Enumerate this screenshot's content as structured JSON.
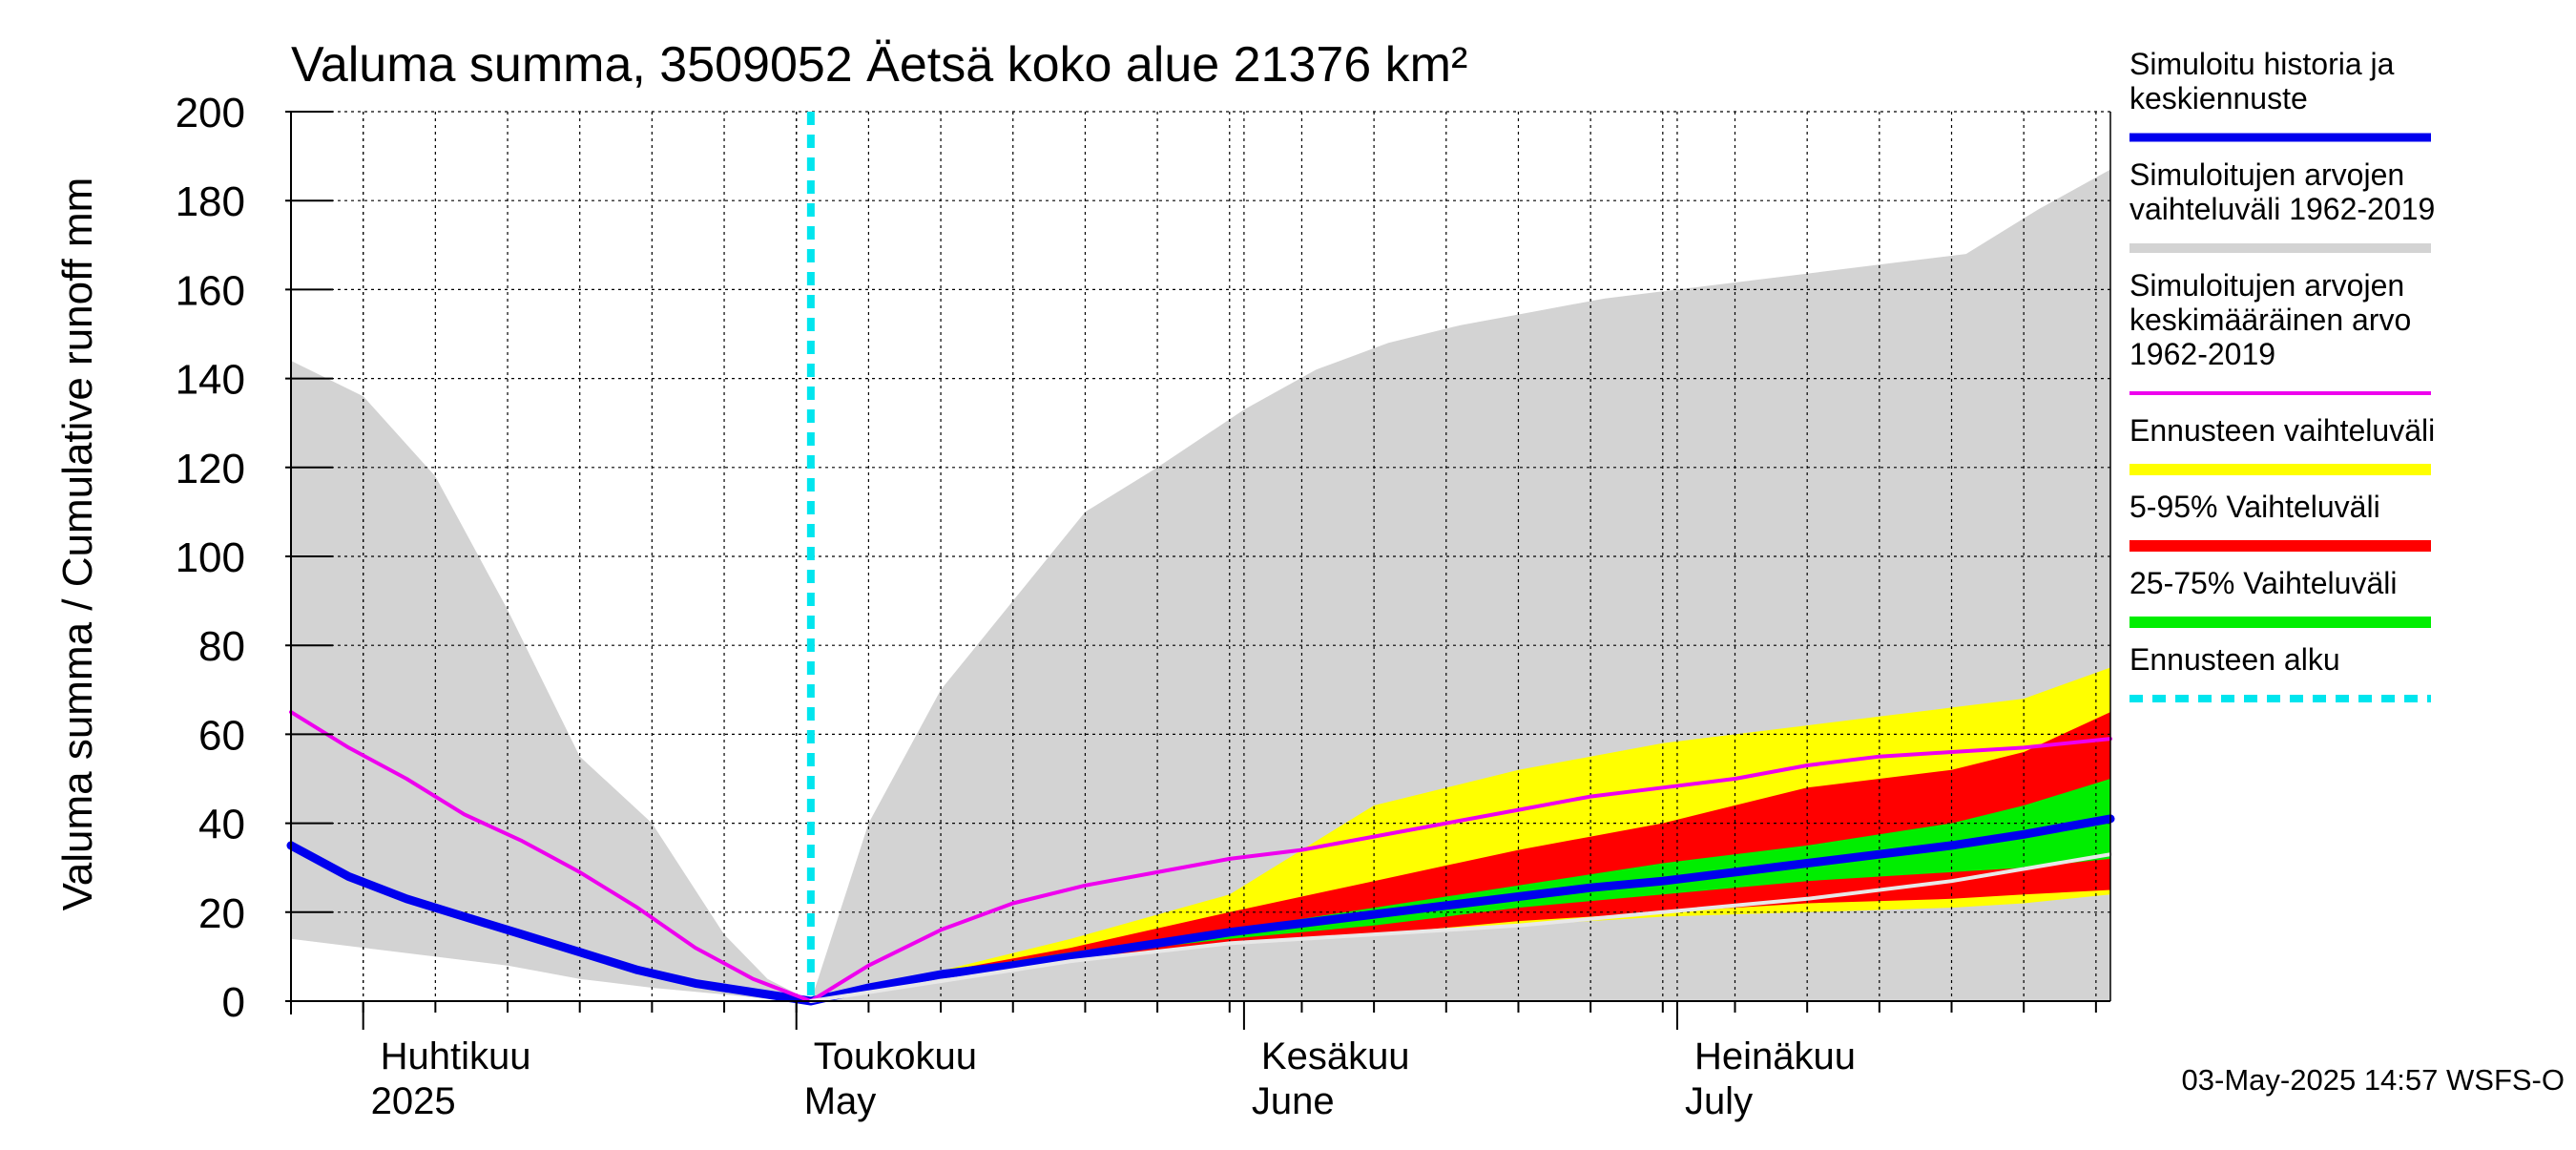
{
  "chart_data": {
    "type": "area",
    "title": "Valuma summa, 3509052 Äetsä koko alue 21376 km²",
    "ylabel": "Valuma summa / Cumulative runoff     mm",
    "ylim": [
      0,
      200
    ],
    "yticks": [
      0,
      20,
      40,
      60,
      80,
      100,
      120,
      140,
      160,
      180,
      200
    ],
    "xlim": [
      "2025-03-27",
      "2025-07-31"
    ],
    "month_labels": [
      {
        "fi": "Huhtikuu",
        "en": "2025",
        "date": "2025-04-01"
      },
      {
        "fi": "Toukokuu",
        "en": "May",
        "date": "2025-05-01"
      },
      {
        "fi": "Kesäkuu",
        "en": "June",
        "date": "2025-06-01"
      },
      {
        "fi": "Heinäkuu",
        "en": "July",
        "date": "2025-07-01"
      }
    ],
    "forecast_start": "2025-05-02",
    "grid": true,
    "legend_position": "right",
    "footer": "03-May-2025 14:57 WSFS-O",
    "colors": {
      "history_range": "#d3d3d3",
      "forecast_range": "#ffff00",
      "p5_95": "#ff0000",
      "p25_75": "#00ee00",
      "simulated": "#0000ee",
      "mean": "#ee00ee",
      "forecast_start": "#00e5ee",
      "grid": "#000000"
    },
    "series": [
      {
        "name": "Simuloitujen arvojen vaihteluväli 1962-2019",
        "type": "band",
        "color": "#d3d3d3",
        "x": [
          "2025-03-27",
          "2025-04-01",
          "2025-04-06",
          "2025-04-11",
          "2025-04-16",
          "2025-04-21",
          "2025-04-26",
          "2025-04-29",
          "2025-05-02",
          "2025-05-06",
          "2025-05-11",
          "2025-05-16",
          "2025-05-21",
          "2025-05-26",
          "2025-06-01",
          "2025-06-06",
          "2025-06-11",
          "2025-06-16",
          "2025-06-21",
          "2025-06-26",
          "2025-07-01",
          "2025-07-06",
          "2025-07-11",
          "2025-07-16",
          "2025-07-21",
          "2025-07-26",
          "2025-07-31"
        ],
        "lower": [
          14,
          12,
          10,
          8,
          5,
          3,
          1.5,
          0.5,
          0,
          0,
          0,
          0,
          0,
          0,
          0,
          0,
          0,
          0,
          0,
          0,
          0,
          0,
          0,
          0,
          0,
          0,
          0
        ],
        "upper": [
          144,
          136,
          118,
          88,
          55,
          40,
          15,
          5,
          0,
          40,
          70,
          90,
          110,
          120,
          133,
          142,
          148,
          152,
          155,
          158,
          160,
          162,
          164,
          166,
          168,
          178,
          187
        ]
      },
      {
        "name": "Ennusteen vaihteluväli",
        "type": "band",
        "color": "#ffff00",
        "x": [
          "2025-05-02",
          "2025-05-10",
          "2025-05-20",
          "2025-05-31",
          "2025-06-10",
          "2025-06-20",
          "2025-06-30",
          "2025-07-10",
          "2025-07-20",
          "2025-07-25",
          "2025-07-31"
        ],
        "lower": [
          0,
          5,
          9,
          13,
          15,
          17,
          19,
          20,
          21,
          22,
          24
        ],
        "upper": [
          0,
          6,
          14,
          24,
          44,
          52,
          58,
          62,
          66,
          68,
          75
        ]
      },
      {
        "name": "5-95% Vaihteluväli",
        "type": "band",
        "color": "#ff0000",
        "x": [
          "2025-05-02",
          "2025-05-10",
          "2025-05-20",
          "2025-05-31",
          "2025-06-10",
          "2025-06-20",
          "2025-06-30",
          "2025-07-10",
          "2025-07-20",
          "2025-07-25",
          "2025-07-31"
        ],
        "lower": [
          0,
          5,
          9,
          13,
          15,
          18,
          20,
          22,
          23,
          24,
          25
        ],
        "upper": [
          0,
          6,
          12,
          20,
          27,
          34,
          40,
          48,
          52,
          56,
          65
        ]
      },
      {
        "name": "25-75% Vaihteluväli",
        "type": "band",
        "color": "#00ee00",
        "x": [
          "2025-05-02",
          "2025-05-10",
          "2025-05-20",
          "2025-05-31",
          "2025-06-10",
          "2025-06-20",
          "2025-06-30",
          "2025-07-10",
          "2025-07-20",
          "2025-07-25",
          "2025-07-31"
        ],
        "lower": [
          0,
          5,
          10,
          14,
          17,
          21,
          24,
          27,
          29,
          30,
          32
        ],
        "upper": [
          0,
          6,
          11,
          16,
          21,
          26,
          31,
          35,
          40,
          44,
          50
        ]
      },
      {
        "name": "Simuloitu historia ja keskiennuste",
        "type": "line",
        "color": "#0000ee",
        "x": [
          "2025-03-27",
          "2025-03-31",
          "2025-04-04",
          "2025-04-08",
          "2025-04-12",
          "2025-04-16",
          "2025-04-20",
          "2025-04-24",
          "2025-04-28",
          "2025-05-02",
          "2025-05-06",
          "2025-05-11",
          "2025-05-16",
          "2025-05-21",
          "2025-05-26",
          "2025-05-31",
          "2025-06-05",
          "2025-06-10",
          "2025-06-15",
          "2025-06-20",
          "2025-06-25",
          "2025-06-30",
          "2025-07-05",
          "2025-07-10",
          "2025-07-15",
          "2025-07-20",
          "2025-07-25",
          "2025-07-31"
        ],
        "values": [
          35,
          28,
          23,
          19,
          15,
          11,
          7,
          4,
          2,
          0,
          3,
          6,
          8,
          10.5,
          13,
          15.5,
          17.5,
          19.5,
          21.5,
          23.5,
          25.5,
          27,
          29,
          31,
          33,
          35,
          37.5,
          41
        ]
      },
      {
        "name": "Simuloitujen arvojen keskimääräinen arvo 1962-2019",
        "type": "line",
        "color": "#ee00ee",
        "x": [
          "2025-03-27",
          "2025-03-31",
          "2025-04-04",
          "2025-04-08",
          "2025-04-12",
          "2025-04-16",
          "2025-04-20",
          "2025-04-24",
          "2025-04-28",
          "2025-05-02",
          "2025-05-06",
          "2025-05-11",
          "2025-05-16",
          "2025-05-21",
          "2025-05-26",
          "2025-05-31",
          "2025-06-05",
          "2025-06-10",
          "2025-06-15",
          "2025-06-20",
          "2025-06-25",
          "2025-06-30",
          "2025-07-05",
          "2025-07-10",
          "2025-07-15",
          "2025-07-20",
          "2025-07-25",
          "2025-07-31"
        ],
        "values": [
          65,
          57,
          50,
          42,
          36,
          29,
          21,
          12,
          5,
          0,
          8,
          16,
          22,
          26,
          29,
          32,
          34,
          37,
          40,
          43,
          46,
          48,
          50,
          53,
          55,
          56,
          57,
          59
        ]
      },
      {
        "name": "",
        "type": "line",
        "color": "#e8e8e8",
        "x": [
          "2025-05-02",
          "2025-05-10",
          "2025-05-20",
          "2025-05-31",
          "2025-06-10",
          "2025-06-20",
          "2025-06-30",
          "2025-07-10",
          "2025-07-20",
          "2025-07-31"
        ],
        "values": [
          0,
          4,
          9,
          13,
          15,
          17,
          20,
          23,
          27,
          33
        ]
      }
    ],
    "legend": [
      {
        "label_lines": [
          "Simuloitu historia ja",
          "keskiennuste"
        ],
        "color": "#0000ee",
        "style": "solid",
        "width": 9
      },
      {
        "label_lines": [
          "Simuloitujen arvojen",
          "vaihteluväli 1962-2019"
        ],
        "color": "#d3d3d3",
        "style": "solid",
        "width": 10
      },
      {
        "label_lines": [
          "Simuloitujen arvojen",
          "keskimääräinen arvo",
          "   1962-2019"
        ],
        "color": "#ee00ee",
        "style": "solid",
        "width": 4
      },
      {
        "label_lines": [
          "Ennusteen vaihteluväli"
        ],
        "color": "#ffff00",
        "style": "solid",
        "width": 12
      },
      {
        "label_lines": [
          "5-95% Vaihteluväli"
        ],
        "color": "#ff0000",
        "style": "solid",
        "width": 12
      },
      {
        "label_lines": [
          "25-75% Vaihteluväli"
        ],
        "color": "#00ee00",
        "style": "solid",
        "width": 12
      },
      {
        "label_lines": [
          "Ennusteen alku"
        ],
        "color": "#00e5ee",
        "style": "dashed",
        "width": 8
      }
    ]
  }
}
